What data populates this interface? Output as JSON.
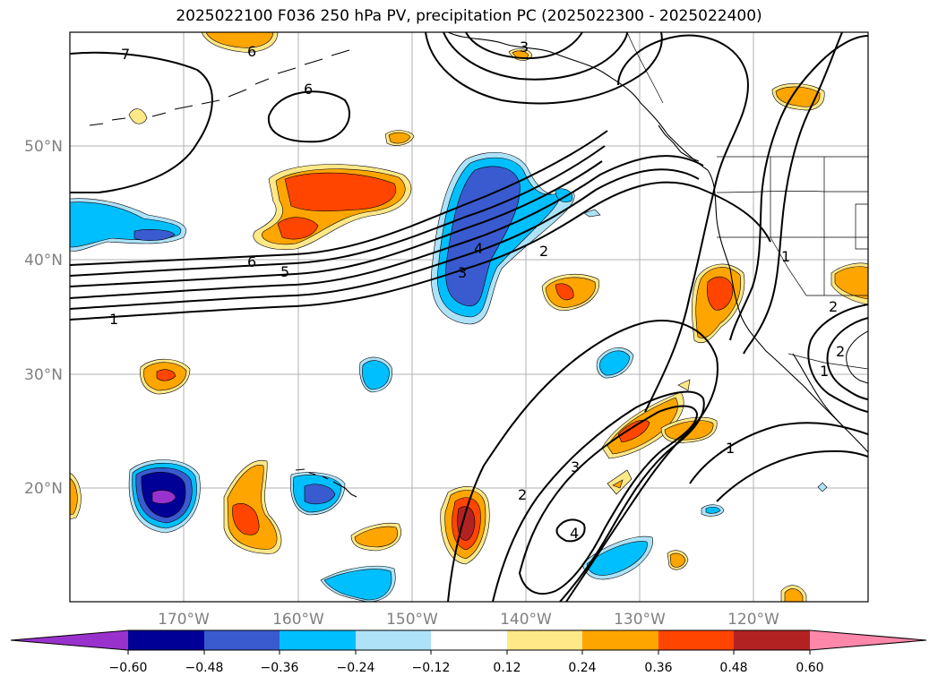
{
  "title": "2025022100 F036 250 hPa PV, precipitation PC (2025022300 - 2025022400)",
  "lat_labels": [
    "50°N",
    "40°N",
    "30°N",
    "20°N"
  ],
  "lon_labels": [
    "170°W",
    "160°W",
    "150°W",
    "140°W",
    "130°W",
    "120°W"
  ],
  "contour_labels": [
    "7",
    "6",
    "6",
    "6",
    "5",
    "4",
    "3",
    "3",
    "2",
    "1",
    "1",
    "2",
    "3",
    "4",
    "2",
    "1",
    "2",
    "1"
  ],
  "colorbar": {
    "ticks": [
      "−0.60",
      "−0.48",
      "−0.36",
      "−0.24",
      "−0.12",
      "0.12",
      "0.24",
      "0.36",
      "0.48",
      "0.60"
    ],
    "colors": [
      "#9932CC",
      "#000096",
      "#3A5BCF",
      "#00BFFF",
      "#ADE2F8",
      "#FFFFFF",
      "#FFE888",
      "#FFA500",
      "#FF4500",
      "#B22222",
      "#FF88AA"
    ]
  },
  "colors": {
    "pos1": "#FFE888",
    "pos2": "#FFA500",
    "pos3": "#FF4500",
    "pos4": "#B22222",
    "neg1": "#ADE2F8",
    "neg2": "#00BFFF",
    "neg3": "#3A5BCF",
    "neg4": "#000096",
    "neg5": "#9932CC"
  }
}
